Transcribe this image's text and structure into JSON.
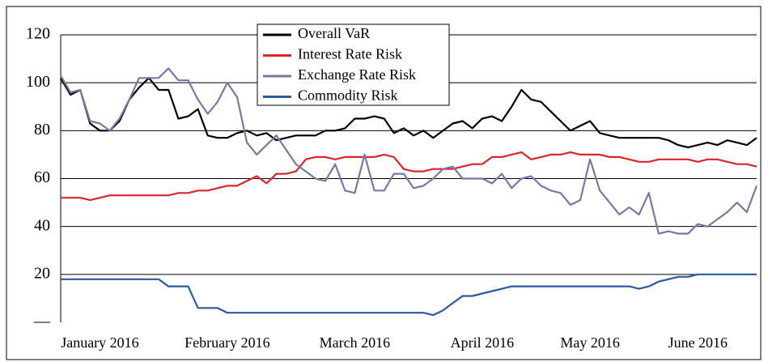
{
  "chart_data": {
    "type": "line",
    "categories": [
      null,
      null,
      null,
      null,
      "January 2016",
      null,
      null,
      null,
      null,
      null,
      null,
      null,
      null,
      null,
      null,
      null,
      null,
      "February 2016",
      null,
      null,
      null,
      null,
      null,
      null,
      null,
      null,
      null,
      null,
      null,
      null,
      "March 2016",
      null,
      null,
      null,
      null,
      null,
      null,
      null,
      null,
      null,
      null,
      null,
      null,
      "April 2016",
      null,
      null,
      null,
      null,
      null,
      null,
      null,
      null,
      null,
      null,
      "May 2016",
      null,
      null,
      null,
      null,
      null,
      null,
      null,
      null,
      null,
      null,
      "June 2016",
      null,
      null,
      null,
      null,
      null,
      null
    ],
    "series": [
      {
        "name": "Overall VaR",
        "color": "#000000",
        "values": [
          102,
          95,
          97,
          83,
          80,
          80,
          84,
          93,
          98,
          102,
          97,
          97,
          85,
          86,
          89,
          78,
          77,
          77,
          79,
          80,
          78,
          79,
          76,
          77,
          78,
          78,
          78,
          80,
          80,
          81,
          85,
          85,
          86,
          85,
          79,
          81,
          78,
          80,
          77,
          80,
          83,
          84,
          81,
          85,
          86,
          84,
          90,
          97,
          93,
          92,
          88,
          84,
          80,
          82,
          84,
          79,
          78,
          77,
          77,
          77,
          77,
          77,
          76,
          74,
          73,
          74,
          75,
          74,
          76,
          75,
          74,
          77
        ]
      },
      {
        "name": "Interest Rate Risk",
        "color": "#d9262a",
        "values": [
          52,
          52,
          52,
          51,
          52,
          53,
          53,
          53,
          53,
          53,
          53,
          53,
          54,
          54,
          55,
          55,
          56,
          57,
          57,
          59,
          61,
          58,
          62,
          62,
          63,
          68,
          69,
          69,
          68,
          69,
          69,
          69,
          69,
          70,
          69,
          64,
          63,
          63,
          64,
          64,
          64,
          65,
          66,
          66,
          69,
          69,
          70,
          71,
          68,
          69,
          70,
          70,
          71,
          70,
          70,
          70,
          69,
          69,
          68,
          67,
          67,
          68,
          68,
          68,
          68,
          67,
          68,
          68,
          67,
          66,
          66,
          65
        ]
      },
      {
        "name": "Exchange Rate Risk",
        "color": "#7878a6",
        "values": [
          103,
          96,
          97,
          84,
          83,
          80,
          85,
          93,
          102,
          102,
          102,
          106,
          101,
          101,
          93,
          87,
          92,
          100,
          94,
          75,
          70,
          74,
          78,
          72,
          66,
          63,
          60,
          59,
          66,
          55,
          54,
          70,
          55,
          55,
          62,
          62,
          56,
          57,
          60,
          64,
          65,
          60,
          60,
          60,
          58,
          62,
          56,
          60,
          61,
          57,
          55,
          54,
          49,
          51,
          68,
          55,
          50,
          45,
          48,
          45,
          54,
          37,
          38,
          37,
          37,
          41,
          40,
          43,
          46,
          50,
          46,
          57
        ]
      },
      {
        "name": "Commodity Risk",
        "color": "#2b5a9e",
        "values": [
          18,
          18,
          18,
          18,
          18,
          18,
          18,
          18,
          18,
          18,
          18,
          15,
          15,
          15,
          6,
          6,
          6,
          4,
          4,
          4,
          4,
          4,
          4,
          4,
          4,
          4,
          4,
          4,
          4,
          4,
          4,
          4,
          4,
          4,
          4,
          4,
          4,
          4,
          3,
          5,
          8,
          11,
          11,
          12,
          13,
          14,
          15,
          15,
          15,
          15,
          15,
          15,
          15,
          15,
          15,
          15,
          15,
          15,
          15,
          14,
          15,
          17,
          18,
          19,
          19,
          20,
          20,
          20,
          20,
          20,
          20,
          20
        ]
      }
    ],
    "ylim": [
      0,
      120
    ],
    "yticks": [
      {
        "value": 0,
        "label": "—"
      },
      20,
      40,
      60,
      80,
      100,
      120
    ],
    "grid": true,
    "legend": "top-center"
  }
}
